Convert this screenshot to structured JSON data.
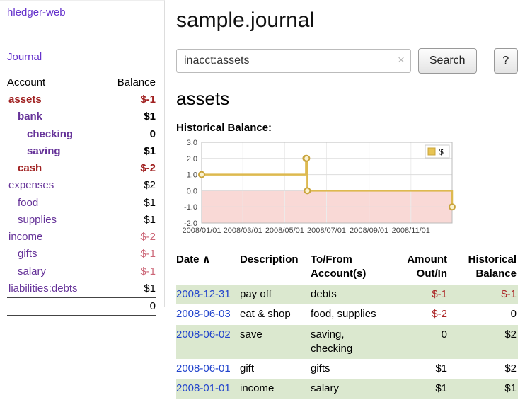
{
  "app": {
    "brand": "hledger-web",
    "nav_journal": "Journal"
  },
  "sidebar": {
    "table_headers": {
      "account": "Account",
      "balance": "Balance"
    },
    "accounts": [
      {
        "name": "assets",
        "indent": 0,
        "balance": "$-1",
        "bold": true,
        "name_neg": true,
        "bal_neg": true
      },
      {
        "name": "bank",
        "indent": 1,
        "balance": "$1",
        "bold": true
      },
      {
        "name": "checking",
        "indent": 2,
        "balance": "0",
        "bold": true
      },
      {
        "name": "saving",
        "indent": 2,
        "balance": "$1",
        "bold": true
      },
      {
        "name": "cash",
        "indent": 1,
        "balance": "$-2",
        "bold": true,
        "name_neg": true,
        "bal_neg": true
      },
      {
        "name": "expenses",
        "indent": 0,
        "balance": "$2"
      },
      {
        "name": "food",
        "indent": 1,
        "balance": "$1"
      },
      {
        "name": "supplies",
        "indent": 1,
        "balance": "$1"
      },
      {
        "name": "income",
        "indent": 0,
        "balance": "$-2",
        "bal_soft_neg": true
      },
      {
        "name": "gifts",
        "indent": 1,
        "balance": "$-1",
        "bal_soft_neg": true
      },
      {
        "name": "salary",
        "indent": 1,
        "balance": "$-1",
        "bal_soft_neg": true
      },
      {
        "name": "liabilities:debts",
        "indent": 0,
        "balance": "$1"
      }
    ],
    "total": "0"
  },
  "header": {
    "title": "sample.journal"
  },
  "search": {
    "value": "inacct:assets",
    "clear_icon": "×",
    "button": "Search",
    "help_button": "?"
  },
  "account_page": {
    "heading": "assets",
    "chart_label": "Historical Balance:"
  },
  "chart_data": {
    "type": "line",
    "title": "Historical Balance:",
    "step": true,
    "x_range": [
      "2008-01-01",
      "2008-12-31"
    ],
    "ylim": [
      -2.0,
      3.0
    ],
    "yticks": [
      3.0,
      2.0,
      1.0,
      0.0,
      -1.0,
      -2.0
    ],
    "xticks": [
      "2008/01/01",
      "2008/03/01",
      "2008/05/01",
      "2008/07/01",
      "2008/09/01",
      "2008/11/01"
    ],
    "series": [
      {
        "name": "$",
        "points": [
          {
            "date": "2008-01-01",
            "value": 1
          },
          {
            "date": "2008-06-01",
            "value": 2
          },
          {
            "date": "2008-06-02",
            "value": 2
          },
          {
            "date": "2008-06-03",
            "value": 0
          },
          {
            "date": "2008-12-31",
            "value": -1
          }
        ]
      }
    ],
    "legend": [
      {
        "label": "$",
        "color": "#e8c453"
      }
    ],
    "line_color": "#ddb94f",
    "marker_fill": "#fbf2cf",
    "marker_stroke": "#c9a43c",
    "negative_fill": "#f9d9d6",
    "grid_color": "#dddddd"
  },
  "register": {
    "headers": [
      {
        "id": "date",
        "lines": [
          "Date"
        ],
        "align": "left",
        "sort": "∧"
      },
      {
        "id": "description",
        "lines": [
          "Description"
        ],
        "align": "left"
      },
      {
        "id": "account",
        "lines": [
          "To/From",
          "Account(s)"
        ],
        "align": "left"
      },
      {
        "id": "amount",
        "lines": [
          "Amount",
          "Out/In"
        ],
        "align": "right"
      },
      {
        "id": "balance",
        "lines": [
          "Historical",
          "Balance"
        ],
        "align": "right"
      }
    ],
    "rows": [
      {
        "date": "2008-12-31",
        "description": "pay off",
        "accounts": "debts",
        "amount": "$-1",
        "amount_neg": true,
        "balance": "$-1",
        "balance_neg": true
      },
      {
        "date": "2008-06-03",
        "description": "eat & shop",
        "accounts": "food, supplies",
        "amount": "$-2",
        "amount_neg": true,
        "balance": "0"
      },
      {
        "date": "2008-06-02",
        "description": "save",
        "accounts": "saving, checking",
        "amount": "0",
        "balance": "$2"
      },
      {
        "date": "2008-06-01",
        "description": "gift",
        "accounts": "gifts",
        "amount": "$1",
        "balance": "$2"
      },
      {
        "date": "2008-01-01",
        "description": "income",
        "accounts": "salary",
        "amount": "$1",
        "balance": "$1"
      }
    ]
  },
  "colors": {
    "link_purple": "#663399",
    "nav_purple": "#6633cc",
    "link_blue": "#2244cc",
    "negative_strong": "#a02020",
    "negative_soft": "#cc6677",
    "row_stripe_green": "#dbe8cf"
  }
}
